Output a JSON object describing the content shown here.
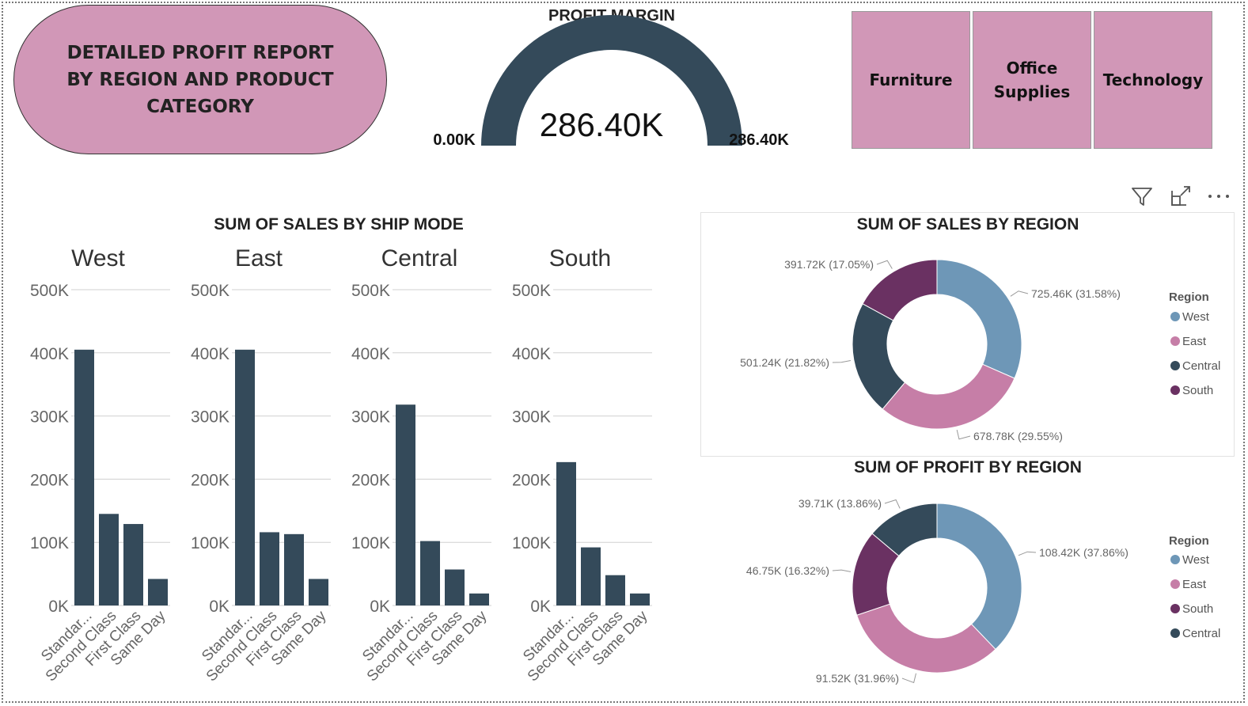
{
  "header": {
    "title": "DETAILED PROFIT REPORT BY REGION AND PRODUCT CATEGORY",
    "gauge": {
      "title": "PROFIT MARGIN",
      "value_label": "286.40K",
      "min_label": "0.00K",
      "max_label": "286.40K",
      "value": 286.4,
      "min": 0,
      "max": 286.4,
      "color": "#344a5a"
    },
    "categories": [
      "Furniture",
      "Office Supplies",
      "Technology"
    ],
    "category_color": "#d197b7"
  },
  "toolbar": {
    "icons": [
      "filter-icon",
      "focus-mode-icon",
      "more-options-icon"
    ]
  },
  "colors": {
    "bar": "#344a5a",
    "west": "#6e97b7",
    "east": "#c67ea7",
    "central": "#344a5a",
    "south": "#6a3162",
    "gridline": "#d0d0d0"
  },
  "chart_data": [
    {
      "type": "bar",
      "title": "SUM OF SALES BY SHIP MODE",
      "categories": [
        "Standar...",
        "Second Class",
        "First Class",
        "Same Day"
      ],
      "y_ticks": [
        "0K",
        "100K",
        "200K",
        "300K",
        "400K",
        "500K"
      ],
      "ylim": [
        0,
        500000
      ],
      "facets": [
        {
          "name": "West",
          "values": [
            405000,
            145000,
            129000,
            42000
          ]
        },
        {
          "name": "East",
          "values": [
            405000,
            116000,
            113000,
            42000
          ]
        },
        {
          "name": "Central",
          "values": [
            318000,
            102000,
            57000,
            19000
          ]
        },
        {
          "name": "South",
          "values": [
            227000,
            92000,
            48000,
            19000
          ]
        }
      ],
      "grid": true
    },
    {
      "type": "pie",
      "donut": true,
      "title": "SUM OF SALES BY REGION",
      "legend_title": "Region",
      "legend_order": [
        "West",
        "East",
        "Central",
        "South"
      ],
      "legend_position": "right",
      "slices": [
        {
          "name": "West",
          "value": 725.46,
          "label": "725.46K (31.58%)"
        },
        {
          "name": "East",
          "value": 678.78,
          "label": "678.78K (29.55%)"
        },
        {
          "name": "Central",
          "value": 501.24,
          "label": "501.24K (21.82%)"
        },
        {
          "name": "South",
          "value": 391.72,
          "label": "391.72K (17.05%)"
        }
      ]
    },
    {
      "type": "pie",
      "donut": true,
      "title": "SUM OF PROFIT BY REGION",
      "legend_title": "Region",
      "legend_order": [
        "West",
        "East",
        "South",
        "Central"
      ],
      "legend_position": "right",
      "slices": [
        {
          "name": "West",
          "value": 108.42,
          "label": "108.42K (37.86%)"
        },
        {
          "name": "East",
          "value": 91.52,
          "label": "91.52K (31.96%)"
        },
        {
          "name": "South",
          "value": 46.75,
          "label": "46.75K (16.32%)"
        },
        {
          "name": "Central",
          "value": 39.71,
          "label": "39.71K (13.86%)"
        }
      ]
    }
  ]
}
